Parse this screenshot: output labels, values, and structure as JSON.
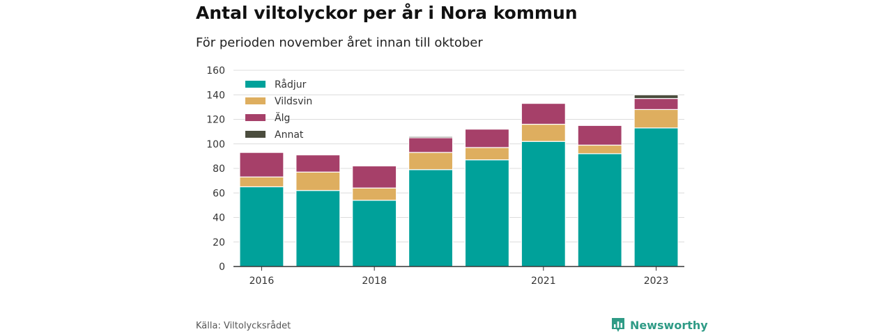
{
  "title": "Antal viltolyckor per år i Nora kommun",
  "subtitle": "För perioden november året innan till oktober",
  "source": "Källa: Viltolycksrådet",
  "brand": {
    "name": "Newsworthy",
    "icon": "chart-logo-icon",
    "color": "#2f9b86"
  },
  "chart_data": {
    "type": "bar",
    "stacked": true,
    "title": "Antal viltolyckor per år i Nora kommun",
    "subtitle": "För perioden november året innan till oktober",
    "categories": [
      "2016",
      "2017",
      "2018",
      "2019",
      "2020",
      "2021",
      "2022",
      "2023"
    ],
    "x_tick_labels": [
      "2016",
      "",
      "2018",
      "",
      "",
      "2021",
      "",
      "2023"
    ],
    "series": [
      {
        "name": "Rådjur",
        "color": "#00a19a",
        "values": [
          65,
          62,
          54,
          79,
          87,
          102,
          92,
          113
        ]
      },
      {
        "name": "Vildsvin",
        "color": "#deae5f",
        "values": [
          8,
          15,
          10,
          14,
          10,
          14,
          7,
          15
        ]
      },
      {
        "name": "Älg",
        "color": "#a64069",
        "values": [
          20,
          14,
          18,
          12,
          15,
          17,
          16,
          9
        ]
      },
      {
        "name": "Annat",
        "color": "#4b4d3e",
        "values": [
          0,
          0,
          0,
          1,
          0,
          0,
          0,
          3
        ]
      }
    ],
    "ylim": [
      0,
      160
    ],
    "yticks": [
      0,
      20,
      40,
      60,
      80,
      100,
      120,
      140,
      160
    ],
    "xlabel": "",
    "ylabel": "",
    "grid": true,
    "legend": "top-left"
  }
}
